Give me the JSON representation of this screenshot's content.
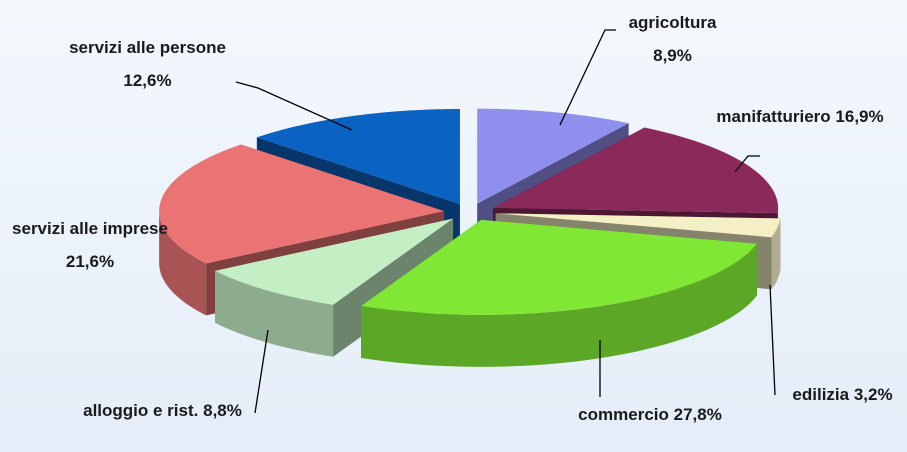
{
  "chart_data": {
    "type": "pie",
    "categories": [
      "agricoltura",
      "manifatturiero",
      "edilizia",
      "commercio",
      "alloggio e rist.",
      "servizi alle imprese",
      "servizi alle persone"
    ],
    "values": [
      8.9,
      16.9,
      3.2,
      27.8,
      8.8,
      21.6,
      12.6
    ],
    "value_labels": [
      "8,9%",
      "16,9%",
      "3,2%",
      "27,8%",
      "8,8%",
      "21,6%",
      "12,6%"
    ],
    "colors": [
      "#8f8fee",
      "#8b2a5a",
      "#f4efc4",
      "#80e834",
      "#c4efc4",
      "#ea7474",
      "#0a62c2"
    ]
  }
}
